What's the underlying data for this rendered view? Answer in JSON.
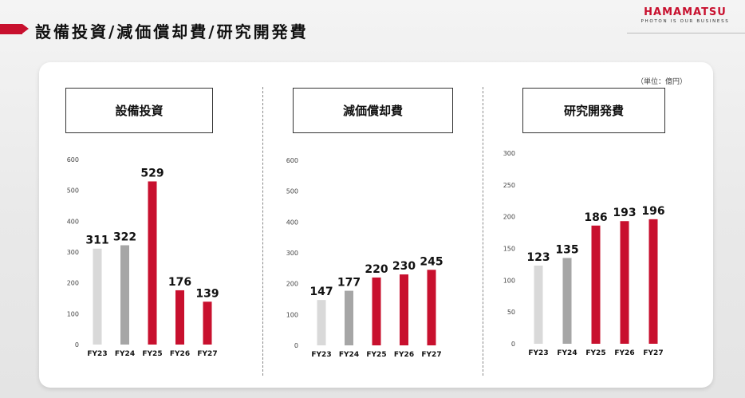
{
  "header": {
    "title": "設備投資/減価償却費/研究開発費",
    "logo_name": "HAMAMATSU",
    "logo_tagline": "PHOTON IS OUR BUSINESS"
  },
  "unit_note": "（単位：億円）",
  "colors": {
    "accent": "#c8102e",
    "fy23": "#d9d9d9",
    "fy24": "#a6a6a6",
    "forecast": "#c8102e"
  },
  "chart_data": [
    {
      "type": "bar",
      "title": "設備投資",
      "categories": [
        "FY23",
        "FY24",
        "FY25",
        "FY26",
        "FY27"
      ],
      "values": [
        311,
        322,
        529,
        176,
        139
      ],
      "ylim": [
        0,
        600
      ],
      "yticks": [
        0,
        100,
        200,
        300,
        400,
        500,
        600
      ],
      "bar_colors": [
        "#d9d9d9",
        "#a6a6a6",
        "#c8102e",
        "#c8102e",
        "#c8102e"
      ]
    },
    {
      "type": "bar",
      "title": "減価償却費",
      "categories": [
        "FY23",
        "FY24",
        "FY25",
        "FY26",
        "FY27"
      ],
      "values": [
        147,
        177,
        220,
        230,
        245
      ],
      "ylim": [
        0,
        600
      ],
      "yticks": [
        0,
        100,
        200,
        300,
        400,
        500,
        600
      ],
      "bar_colors": [
        "#d9d9d9",
        "#a6a6a6",
        "#c8102e",
        "#c8102e",
        "#c8102e"
      ]
    },
    {
      "type": "bar",
      "title": "研究開発費",
      "categories": [
        "FY23",
        "FY24",
        "FY25",
        "FY26",
        "FY27"
      ],
      "values": [
        123,
        135,
        186,
        193,
        196
      ],
      "ylim": [
        0,
        300
      ],
      "yticks": [
        0,
        50,
        100,
        150,
        200,
        250,
        300
      ],
      "bar_colors": [
        "#d9d9d9",
        "#a6a6a6",
        "#c8102e",
        "#c8102e",
        "#c8102e"
      ]
    }
  ]
}
